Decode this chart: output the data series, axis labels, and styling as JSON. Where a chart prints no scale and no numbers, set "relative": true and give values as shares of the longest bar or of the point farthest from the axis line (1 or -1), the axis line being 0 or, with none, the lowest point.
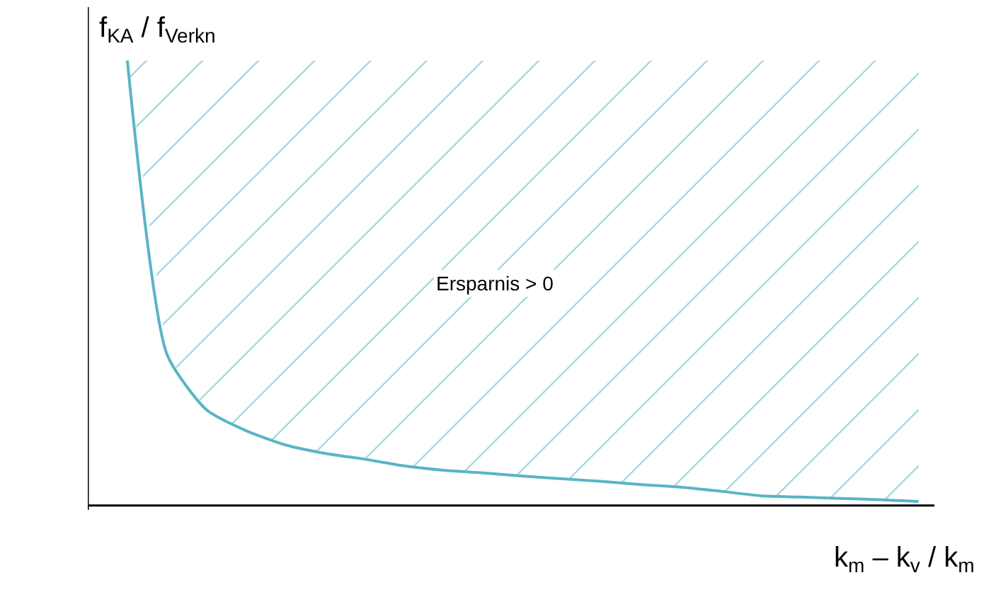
{
  "chart_data": {
    "type": "line",
    "relative": true,
    "xlabel": "k$_{m}$ – k$_{v}$ / k$_{m}$",
    "ylabel": "f$_{KA}$ / f$_{Verkn}$",
    "annotations": [
      "Ersparnis > 0"
    ],
    "categories": [
      null,
      null,
      null,
      null,
      null,
      null,
      null,
      null,
      null,
      null,
      null,
      null,
      null,
      null,
      null,
      null,
      null,
      null,
      null,
      null,
      null
    ],
    "series": [
      {
        "color": "#5ab4c6",
        "values": [
          1.0,
          0.34,
          0.215,
          0.168,
          0.136,
          0.117,
          0.104,
          0.089,
          0.079,
          0.073,
          0.066,
          0.06,
          0.054,
          0.047,
          0.041,
          0.032,
          0.022,
          0.019,
          0.016,
          0.013,
          0.009
        ]
      }
    ]
  }
}
